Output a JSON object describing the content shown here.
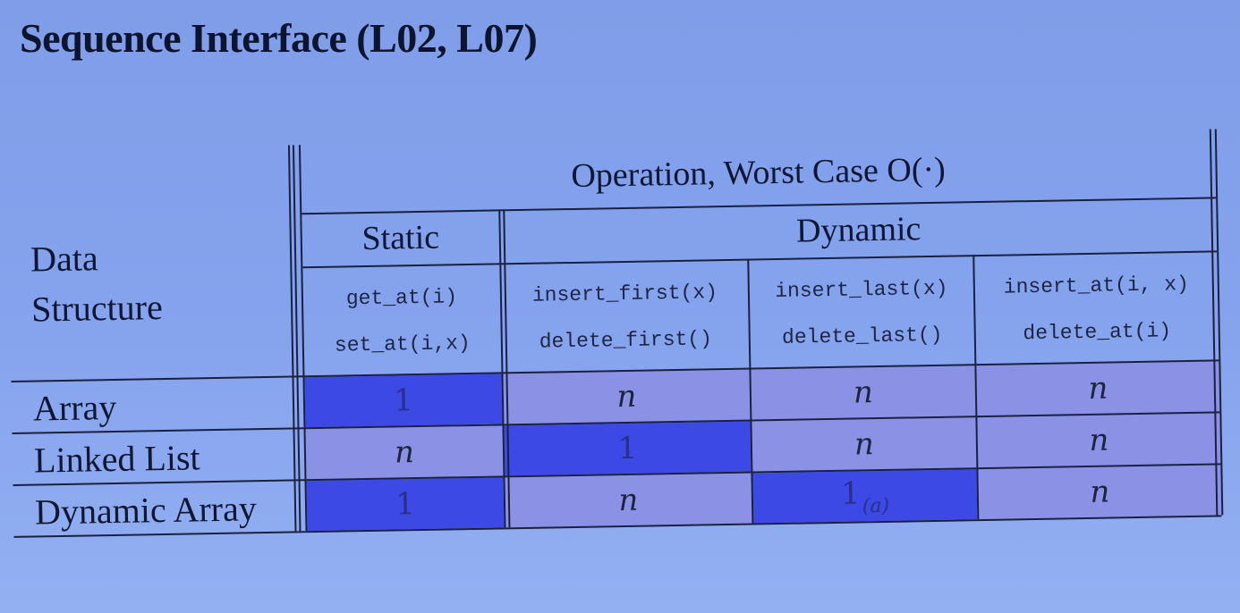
{
  "title": "Sequence Interface (L02, L07)",
  "table": {
    "row_header_lines": [
      "Data",
      "Structure"
    ],
    "group_header": "Operation, Worst Case O(·)",
    "static_label": "Static",
    "dynamic_label": "Dynamic",
    "columns": [
      {
        "ops": [
          "get_at(i)",
          "set_at(i,x)"
        ]
      },
      {
        "ops": [
          "insert_first(x)",
          "delete_first()"
        ]
      },
      {
        "ops": [
          "insert_last(x)",
          "delete_last()"
        ]
      },
      {
        "ops": [
          "insert_at(i, x)",
          "delete_at(i)"
        ]
      }
    ],
    "rows": [
      {
        "name": "Array",
        "cells": [
          {
            "value": "1",
            "sub": "",
            "best": true
          },
          {
            "value": "n",
            "sub": "",
            "best": false
          },
          {
            "value": "n",
            "sub": "",
            "best": false
          },
          {
            "value": "n",
            "sub": "",
            "best": false
          }
        ]
      },
      {
        "name": "Linked List",
        "cells": [
          {
            "value": "n",
            "sub": "",
            "best": false
          },
          {
            "value": "1",
            "sub": "",
            "best": true
          },
          {
            "value": "n",
            "sub": "",
            "best": false
          },
          {
            "value": "n",
            "sub": "",
            "best": false
          }
        ]
      },
      {
        "name": "Dynamic Array",
        "cells": [
          {
            "value": "1",
            "sub": "",
            "best": true
          },
          {
            "value": "n",
            "sub": "",
            "best": false
          },
          {
            "value": "1",
            "sub": "(a)",
            "best": true
          },
          {
            "value": "n",
            "sub": "",
            "best": false
          }
        ]
      }
    ],
    "colors": {
      "best_cell": "#3d49e4",
      "normal_cell": "#8b91e4",
      "background": "#86a3ee"
    }
  }
}
